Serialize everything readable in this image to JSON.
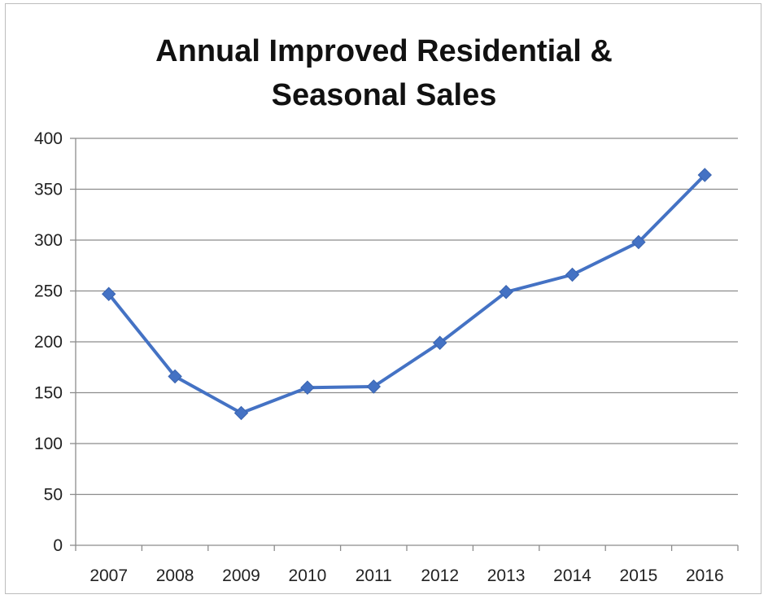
{
  "chart_data": {
    "type": "line",
    "title_line1": "Annual Improved Residential &",
    "title_line2": "Seasonal Sales",
    "xlabel": "",
    "ylabel": "",
    "categories": [
      "2007",
      "2008",
      "2009",
      "2010",
      "2011",
      "2012",
      "2013",
      "2014",
      "2015",
      "2016"
    ],
    "values": [
      247,
      166,
      130,
      155,
      156,
      199,
      249,
      266,
      298,
      364
    ],
    "ylim": [
      0,
      400
    ],
    "yticks": [
      0,
      50,
      100,
      150,
      200,
      250,
      300,
      350,
      400
    ],
    "grid": "horizontal",
    "legend": "none",
    "series_color": "#4472c4",
    "marker": "diamond"
  }
}
